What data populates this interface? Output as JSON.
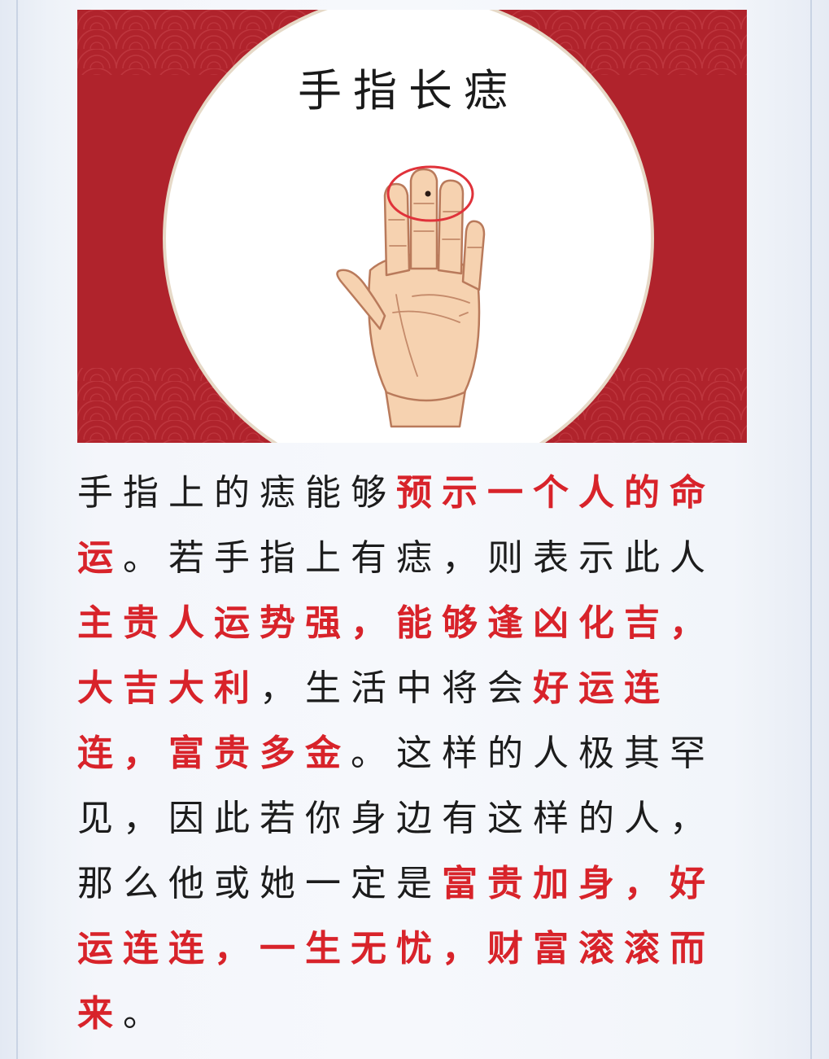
{
  "illustration": {
    "title": "手指长痣",
    "icon": "palm-with-mole-icon",
    "colors": {
      "background": "#b0232c",
      "circle": "#ffffff",
      "skin": "#f6d2b0",
      "highlight_ring": "#e0323a"
    }
  },
  "article": {
    "colors": {
      "text": "#1c1c1c",
      "highlight": "#d8232a"
    },
    "segments": [
      {
        "text": "手指上的痣能够",
        "highlight": false
      },
      {
        "text": "预示一个人的命运",
        "highlight": true
      },
      {
        "text": "。若手指上有痣，则表示此人",
        "highlight": false
      },
      {
        "text": "主贵人运势强，能够逢凶化吉，大吉大利",
        "highlight": true
      },
      {
        "text": "，生活中将会",
        "highlight": false
      },
      {
        "text": "好运连连，富贵多金",
        "highlight": true
      },
      {
        "text": "。这样的人极其罕见，因此若你身边有这样的人，那么他或她一定是",
        "highlight": false
      },
      {
        "text": "富贵加身，好运连连，一生无忧，财富滚滚而来",
        "highlight": true
      },
      {
        "text": "。",
        "highlight": false
      }
    ]
  }
}
